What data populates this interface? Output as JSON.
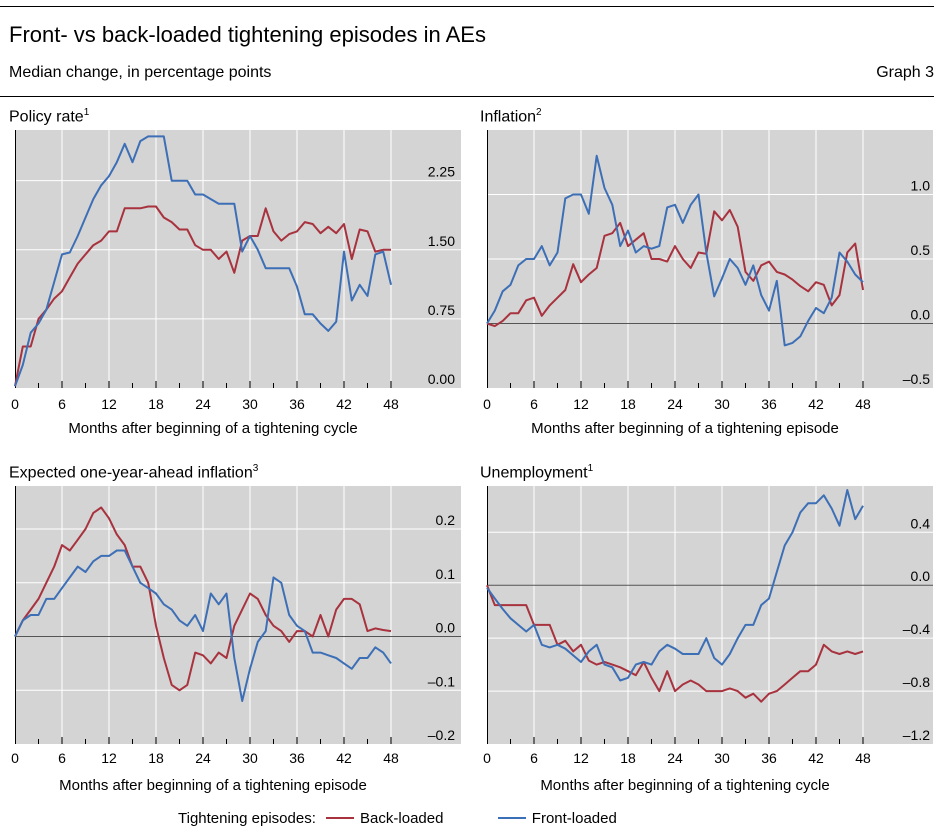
{
  "title": "Front- vs back-loaded tightening episodes in AEs",
  "subtitle": "Median change, in percentage points",
  "graph_label": "Graph 3",
  "legend": {
    "prefix": "Tightening episodes:",
    "back": "Back-loaded",
    "front": "Front-loaded"
  },
  "colors": {
    "back": "#a8323e",
    "front": "#3d6fb6",
    "plot_bg": "#d4d4d4",
    "grid": "#ffffff",
    "zero": "#555555"
  },
  "panels": [
    {
      "title": "Policy rate",
      "sup": "1"
    },
    {
      "title": "Inflation",
      "sup": "2"
    },
    {
      "title": "Expected one-year-ahead inflation",
      "sup": "3"
    },
    {
      "title": "Unemployment",
      "sup": "1"
    }
  ],
  "chart_data": [
    {
      "type": "line",
      "title": "Policy rate",
      "xlabel": "Months after beginning of a tightening cycle",
      "x_ticks": [
        "0",
        "6",
        "12",
        "18",
        "24",
        "30",
        "36",
        "42",
        "48"
      ],
      "y_ticks": [
        "0.00",
        "0.75",
        "1.50",
        "2.25"
      ],
      "ylim": [
        0,
        2.8
      ],
      "xlim": [
        0,
        48
      ],
      "zero_line": false,
      "series": [
        {
          "name": "Back-loaded",
          "x": [
            0,
            1,
            2,
            3,
            4,
            5,
            6,
            7,
            8,
            9,
            10,
            11,
            12,
            13,
            14,
            15,
            16,
            17,
            18,
            19,
            20,
            21,
            22,
            23,
            24,
            25,
            26,
            27,
            28,
            29,
            30,
            31,
            32,
            33,
            34,
            35,
            36,
            37,
            38,
            39,
            40,
            41,
            42,
            43,
            44,
            45,
            46,
            47,
            48
          ],
          "values": [
            0.02,
            0.45,
            0.45,
            0.75,
            0.85,
            0.97,
            1.05,
            1.2,
            1.35,
            1.45,
            1.55,
            1.6,
            1.7,
            1.7,
            1.95,
            1.95,
            1.95,
            1.97,
            1.97,
            1.85,
            1.8,
            1.72,
            1.72,
            1.55,
            1.5,
            1.5,
            1.4,
            1.48,
            1.25,
            1.6,
            1.65,
            1.65,
            1.95,
            1.7,
            1.6,
            1.67,
            1.7,
            1.8,
            1.78,
            1.68,
            1.75,
            1.68,
            1.78,
            1.4,
            1.72,
            1.7,
            1.48,
            1.5,
            1.5
          ]
        },
        {
          "name": "Front-loaded",
          "x": [
            0,
            1,
            2,
            3,
            4,
            5,
            6,
            7,
            8,
            9,
            10,
            11,
            12,
            13,
            14,
            15,
            16,
            17,
            18,
            19,
            20,
            21,
            22,
            23,
            24,
            25,
            26,
            27,
            28,
            29,
            30,
            31,
            32,
            33,
            34,
            35,
            36,
            37,
            38,
            39,
            40,
            41,
            42,
            43,
            44,
            45,
            46,
            47,
            48
          ],
          "values": [
            0.02,
            0.25,
            0.6,
            0.7,
            0.85,
            1.15,
            1.45,
            1.47,
            1.65,
            1.85,
            2.05,
            2.2,
            2.3,
            2.45,
            2.65,
            2.45,
            2.68,
            2.73,
            2.73,
            2.73,
            2.25,
            2.25,
            2.25,
            2.1,
            2.1,
            2.05,
            2.0,
            2.0,
            2.0,
            1.48,
            1.65,
            1.5,
            1.3,
            1.3,
            1.3,
            1.3,
            1.1,
            0.8,
            0.8,
            0.7,
            0.62,
            0.72,
            1.48,
            0.95,
            1.12,
            1.0,
            1.45,
            1.48,
            1.12
          ]
        }
      ]
    },
    {
      "type": "line",
      "title": "Inflation",
      "xlabel": "Months after beginning of a tightening episode",
      "x_ticks": [
        "0",
        "6",
        "12",
        "18",
        "24",
        "30",
        "36",
        "42",
        "48"
      ],
      "y_ticks": [
        "–0.5",
        "0.0",
        "0.5",
        "1.0"
      ],
      "ylim": [
        -0.5,
        1.5
      ],
      "xlim": [
        0,
        48
      ],
      "zero_line": true,
      "series": [
        {
          "name": "Back-loaded",
          "x": [
            0,
            1,
            2,
            3,
            4,
            5,
            6,
            7,
            8,
            9,
            10,
            11,
            12,
            13,
            14,
            15,
            16,
            17,
            18,
            19,
            20,
            21,
            22,
            23,
            24,
            25,
            26,
            27,
            28,
            29,
            30,
            31,
            32,
            33,
            34,
            35,
            36,
            37,
            38,
            39,
            40,
            41,
            42,
            43,
            44,
            45,
            46,
            47,
            48
          ],
          "values": [
            0.0,
            -0.02,
            0.02,
            0.08,
            0.08,
            0.18,
            0.2,
            0.06,
            0.14,
            0.2,
            0.26,
            0.46,
            0.32,
            0.38,
            0.43,
            0.68,
            0.7,
            0.78,
            0.6,
            0.65,
            0.7,
            0.5,
            0.5,
            0.48,
            0.6,
            0.5,
            0.43,
            0.55,
            0.54,
            0.87,
            0.8,
            0.88,
            0.75,
            0.4,
            0.33,
            0.45,
            0.48,
            0.4,
            0.38,
            0.34,
            0.29,
            0.25,
            0.32,
            0.3,
            0.14,
            0.22,
            0.55,
            0.62,
            0.26
          ]
        },
        {
          "name": "Front-loaded",
          "x": [
            0,
            1,
            2,
            3,
            4,
            5,
            6,
            7,
            8,
            9,
            10,
            11,
            12,
            13,
            14,
            15,
            16,
            17,
            18,
            19,
            20,
            21,
            22,
            23,
            24,
            25,
            26,
            27,
            28,
            29,
            30,
            31,
            32,
            33,
            34,
            35,
            36,
            37,
            38,
            39,
            40,
            41,
            42,
            43,
            44,
            45,
            46,
            47,
            48
          ],
          "values": [
            0.0,
            0.1,
            0.25,
            0.3,
            0.45,
            0.5,
            0.5,
            0.6,
            0.45,
            0.55,
            0.97,
            1.0,
            1.0,
            0.85,
            1.3,
            1.05,
            0.92,
            0.6,
            0.72,
            0.55,
            0.6,
            0.58,
            0.6,
            0.9,
            0.92,
            0.78,
            0.92,
            1.0,
            0.55,
            0.21,
            0.35,
            0.5,
            0.43,
            0.3,
            0.45,
            0.22,
            0.1,
            0.33,
            -0.17,
            -0.15,
            -0.1,
            0.02,
            0.12,
            0.08,
            0.2,
            0.55,
            0.48,
            0.38,
            0.32
          ]
        }
      ]
    },
    {
      "type": "line",
      "title": "Expected one-year-ahead inflation",
      "xlabel": "Months after beginning of a tightening episode",
      "x_ticks": [
        "0",
        "6",
        "12",
        "18",
        "24",
        "30",
        "36",
        "42",
        "48"
      ],
      "y_ticks": [
        "–0.2",
        "–0.1",
        "0.0",
        "0.1",
        "0.2"
      ],
      "ylim": [
        -0.2,
        0.28
      ],
      "xlim": [
        0,
        48
      ],
      "zero_line": true,
      "series": [
        {
          "name": "Back-loaded",
          "x": [
            0,
            1,
            2,
            3,
            4,
            5,
            6,
            7,
            8,
            9,
            10,
            11,
            12,
            13,
            14,
            15,
            16,
            17,
            18,
            19,
            20,
            21,
            22,
            23,
            24,
            25,
            26,
            27,
            28,
            29,
            30,
            31,
            32,
            33,
            34,
            35,
            36,
            37,
            38,
            39,
            40,
            41,
            42,
            43,
            44,
            45,
            46,
            47,
            48
          ],
          "values": [
            0.0,
            0.03,
            0.05,
            0.07,
            0.1,
            0.13,
            0.17,
            0.16,
            0.18,
            0.2,
            0.23,
            0.24,
            0.22,
            0.19,
            0.17,
            0.13,
            0.13,
            0.1,
            0.02,
            -0.04,
            -0.09,
            -0.1,
            -0.09,
            -0.03,
            -0.035,
            -0.05,
            -0.03,
            -0.04,
            0.02,
            0.05,
            0.08,
            0.07,
            0.04,
            0.02,
            0.01,
            -0.01,
            0.01,
            0.01,
            0.0,
            0.04,
            0.0,
            0.05,
            0.07,
            0.07,
            0.06,
            0.01,
            0.015,
            0.012,
            0.01
          ]
        },
        {
          "name": "Front-loaded",
          "x": [
            0,
            1,
            2,
            3,
            4,
            5,
            6,
            7,
            8,
            9,
            10,
            11,
            12,
            13,
            14,
            15,
            16,
            17,
            18,
            19,
            20,
            21,
            22,
            23,
            24,
            25,
            26,
            27,
            28,
            29,
            30,
            31,
            32,
            33,
            34,
            35,
            36,
            37,
            38,
            39,
            40,
            41,
            42,
            43,
            44,
            45,
            46,
            47,
            48
          ],
          "values": [
            0.0,
            0.03,
            0.04,
            0.04,
            0.07,
            0.07,
            0.09,
            0.11,
            0.13,
            0.12,
            0.14,
            0.15,
            0.15,
            0.16,
            0.16,
            0.13,
            0.1,
            0.09,
            0.08,
            0.06,
            0.05,
            0.03,
            0.02,
            0.04,
            0.01,
            0.08,
            0.06,
            0.08,
            -0.04,
            -0.12,
            -0.06,
            -0.01,
            0.01,
            0.11,
            0.1,
            0.04,
            0.02,
            0.01,
            -0.03,
            -0.03,
            -0.035,
            -0.04,
            -0.05,
            -0.06,
            -0.04,
            -0.04,
            -0.02,
            -0.03,
            -0.05
          ]
        }
      ]
    },
    {
      "type": "line",
      "title": "Unemployment",
      "xlabel": "Months after beginning of a tightening cycle",
      "x_ticks": [
        "0",
        "6",
        "12",
        "18",
        "24",
        "30",
        "36",
        "42",
        "48"
      ],
      "y_ticks": [
        "–1.2",
        "–0.8",
        "–0.4",
        "0.0",
        "0.4"
      ],
      "ylim": [
        -1.2,
        0.75
      ],
      "xlim": [
        0,
        48
      ],
      "zero_line": true,
      "series": [
        {
          "name": "Back-loaded",
          "x": [
            0,
            1,
            2,
            3,
            4,
            5,
            6,
            7,
            8,
            9,
            10,
            11,
            12,
            13,
            14,
            15,
            16,
            17,
            18,
            19,
            20,
            21,
            22,
            23,
            24,
            25,
            26,
            27,
            28,
            29,
            30,
            31,
            32,
            33,
            34,
            35,
            36,
            37,
            38,
            39,
            40,
            41,
            42,
            43,
            44,
            45,
            46,
            47,
            48
          ],
          "values": [
            0.0,
            -0.15,
            -0.15,
            -0.15,
            -0.15,
            -0.15,
            -0.3,
            -0.3,
            -0.3,
            -0.45,
            -0.42,
            -0.5,
            -0.45,
            -0.57,
            -0.6,
            -0.58,
            -0.6,
            -0.62,
            -0.65,
            -0.68,
            -0.58,
            -0.7,
            -0.8,
            -0.65,
            -0.8,
            -0.75,
            -0.72,
            -0.75,
            -0.8,
            -0.8,
            -0.8,
            -0.78,
            -0.8,
            -0.85,
            -0.82,
            -0.88,
            -0.82,
            -0.8,
            -0.75,
            -0.7,
            -0.65,
            -0.65,
            -0.6,
            -0.45,
            -0.5,
            -0.52,
            -0.5,
            -0.52,
            -0.5
          ]
        },
        {
          "name": "Front-loaded",
          "x": [
            0,
            1,
            2,
            3,
            4,
            5,
            6,
            7,
            8,
            9,
            10,
            11,
            12,
            13,
            14,
            15,
            16,
            17,
            18,
            19,
            20,
            21,
            22,
            23,
            24,
            25,
            26,
            27,
            28,
            29,
            30,
            31,
            32,
            33,
            34,
            35,
            36,
            37,
            38,
            39,
            40,
            41,
            42,
            43,
            44,
            45,
            46,
            47,
            48
          ],
          "values": [
            -0.02,
            -0.1,
            -0.18,
            -0.25,
            -0.3,
            -0.35,
            -0.3,
            -0.45,
            -0.47,
            -0.45,
            -0.48,
            -0.53,
            -0.58,
            -0.5,
            -0.45,
            -0.6,
            -0.62,
            -0.72,
            -0.7,
            -0.6,
            -0.58,
            -0.6,
            -0.5,
            -0.45,
            -0.48,
            -0.52,
            -0.52,
            -0.52,
            -0.4,
            -0.55,
            -0.6,
            -0.52,
            -0.4,
            -0.3,
            -0.3,
            -0.15,
            -0.1,
            0.1,
            0.3,
            0.4,
            0.55,
            0.62,
            0.62,
            0.68,
            0.58,
            0.45,
            0.72,
            0.5,
            0.6
          ]
        }
      ]
    }
  ]
}
